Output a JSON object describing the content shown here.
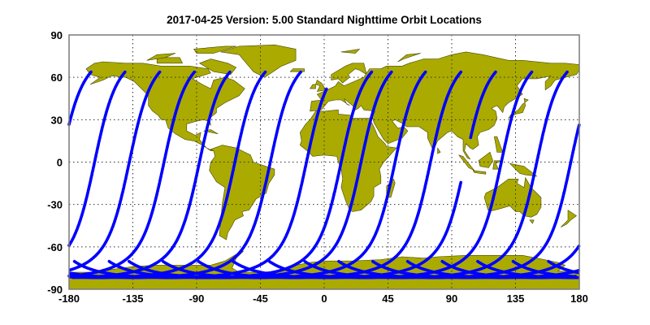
{
  "title": "2017-04-25    Version: 5.00  Standard    Nighttime Orbit Locations",
  "colors": {
    "land": "#aaaa00",
    "orbit": "#0000ff",
    "ocean": "#ffffff"
  },
  "chart_data": {
    "type": "map-ground-track",
    "projection": "equirectangular",
    "xlim": [
      -180,
      180
    ],
    "ylim": [
      -90,
      90
    ],
    "grid": true,
    "x_ticks": [
      -180,
      -135,
      -90,
      -45,
      0,
      45,
      90,
      135,
      180
    ],
    "y_ticks": [
      90,
      60,
      30,
      0,
      -30,
      -60,
      -90
    ],
    "x_tick_labels": [
      "-180",
      "-135",
      "-90",
      "-45",
      "0",
      "45",
      "90",
      "135",
      "180"
    ],
    "y_tick_labels": [
      "90",
      "60",
      "30",
      "0",
      "-30",
      "-60",
      "-90"
    ],
    "tracks": [
      {
        "equator_lon": -162,
        "lat_max": 64
      },
      {
        "equator_lon": -137.5,
        "lat_max": 64
      },
      {
        "equator_lon": -113,
        "lat_max": 64
      },
      {
        "equator_lon": -88,
        "lat_max": 64
      },
      {
        "equator_lon": -63,
        "lat_max": 64
      },
      {
        "equator_lon": -38,
        "lat_max": 64
      },
      {
        "equator_lon": -12.5,
        "lat_max": 52
      },
      {
        "equator_lon": 12,
        "lat_max": 64
      },
      {
        "equator_lon": 26,
        "lat_max": 64
      },
      {
        "equator_lon": 50,
        "lat_max": 64
      },
      {
        "equator_lon": 75,
        "lat_max": 64
      },
      {
        "equator_lon": 99.5,
        "lat_max": 64,
        "gap": [
          -14,
          17
        ]
      },
      {
        "equator_lon": 125,
        "lat_max": 64
      },
      {
        "equator_lon": 150,
        "lat_max": 64
      },
      {
        "equator_lon": 174,
        "lat_max": 64
      }
    ]
  }
}
